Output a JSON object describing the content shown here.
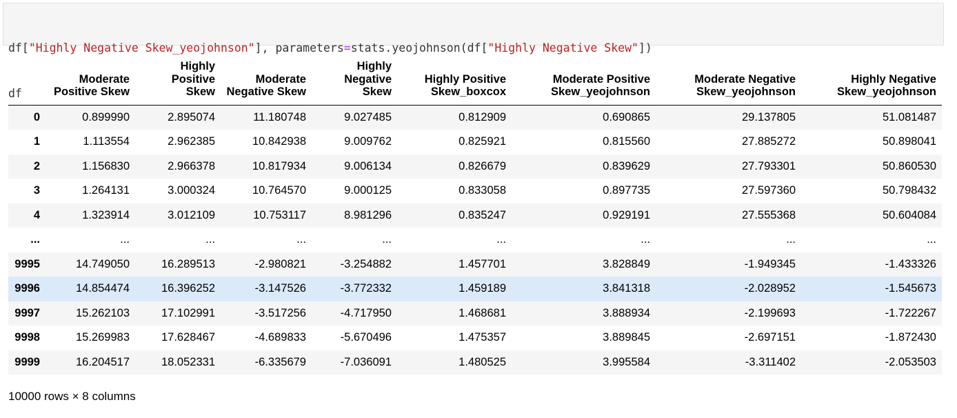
{
  "code_cell": {
    "line1": [
      {
        "t": "plain",
        "v": "df["
      },
      {
        "t": "str",
        "v": "\"Highly Negative Skew_yeojohnson\""
      },
      {
        "t": "plain",
        "v": "], parameters"
      },
      {
        "t": "op",
        "v": "="
      },
      {
        "t": "plain",
        "v": "stats.yeojohnson(df["
      },
      {
        "t": "str",
        "v": "\"Highly Negative Skew\""
      },
      {
        "t": "plain",
        "v": "])"
      }
    ],
    "line2": "df"
  },
  "dataframe": {
    "columns": [
      [
        "Moderate",
        "Positive Skew"
      ],
      [
        "Highly",
        "Positive",
        "Skew"
      ],
      [
        "Moderate",
        "Negative Skew"
      ],
      [
        "Highly",
        "Negative",
        "Skew"
      ],
      [
        "Highly Positive",
        "Skew_boxcox"
      ],
      [
        "Moderate Positive",
        "Skew_yeojohnson"
      ],
      [
        "Moderate Negative",
        "Skew_yeojohnson"
      ],
      [
        "Highly Negative",
        "Skew_yeojohnson"
      ]
    ],
    "rows": [
      {
        "index": "0",
        "values": [
          "0.899990",
          "2.895074",
          "11.180748",
          "9.027485",
          "0.812909",
          "0.690865",
          "29.137805",
          "51.081487"
        ]
      },
      {
        "index": "1",
        "values": [
          "1.113554",
          "2.962385",
          "10.842938",
          "9.009762",
          "0.825921",
          "0.815560",
          "27.885272",
          "50.898041"
        ]
      },
      {
        "index": "2",
        "values": [
          "1.156830",
          "2.966378",
          "10.817934",
          "9.006134",
          "0.826679",
          "0.839629",
          "27.793301",
          "50.860530"
        ]
      },
      {
        "index": "3",
        "values": [
          "1.264131",
          "3.000324",
          "10.764570",
          "9.000125",
          "0.833058",
          "0.897735",
          "27.597360",
          "50.798432"
        ]
      },
      {
        "index": "4",
        "values": [
          "1.323914",
          "3.012109",
          "10.753117",
          "8.981296",
          "0.835247",
          "0.929191",
          "27.555368",
          "50.604084"
        ]
      },
      {
        "index": "...",
        "values": [
          "...",
          "...",
          "...",
          "...",
          "...",
          "...",
          "...",
          "..."
        ]
      },
      {
        "index": "9995",
        "values": [
          "14.749050",
          "16.289513",
          "-2.980821",
          "-3.254882",
          "1.457701",
          "3.828849",
          "-1.949345",
          "-1.433326"
        ]
      },
      {
        "index": "9996",
        "values": [
          "14.854474",
          "16.396252",
          "-3.147526",
          "-3.772332",
          "1.459189",
          "3.841318",
          "-2.028952",
          "-1.545673"
        ],
        "hover": true
      },
      {
        "index": "9997",
        "values": [
          "15.262103",
          "17.102991",
          "-3.517256",
          "-4.717950",
          "1.468681",
          "3.888934",
          "-2.199693",
          "-1.722267"
        ]
      },
      {
        "index": "9998",
        "values": [
          "15.269983",
          "17.628467",
          "-4.689833",
          "-5.670496",
          "1.475357",
          "3.889845",
          "-2.697151",
          "-1.872430"
        ]
      },
      {
        "index": "9999",
        "values": [
          "16.204517",
          "18.052331",
          "-6.335679",
          "-7.036091",
          "1.480525",
          "3.995584",
          "-3.311402",
          "-2.053503"
        ]
      }
    ]
  },
  "footer": "10000 rows × 8 columns"
}
